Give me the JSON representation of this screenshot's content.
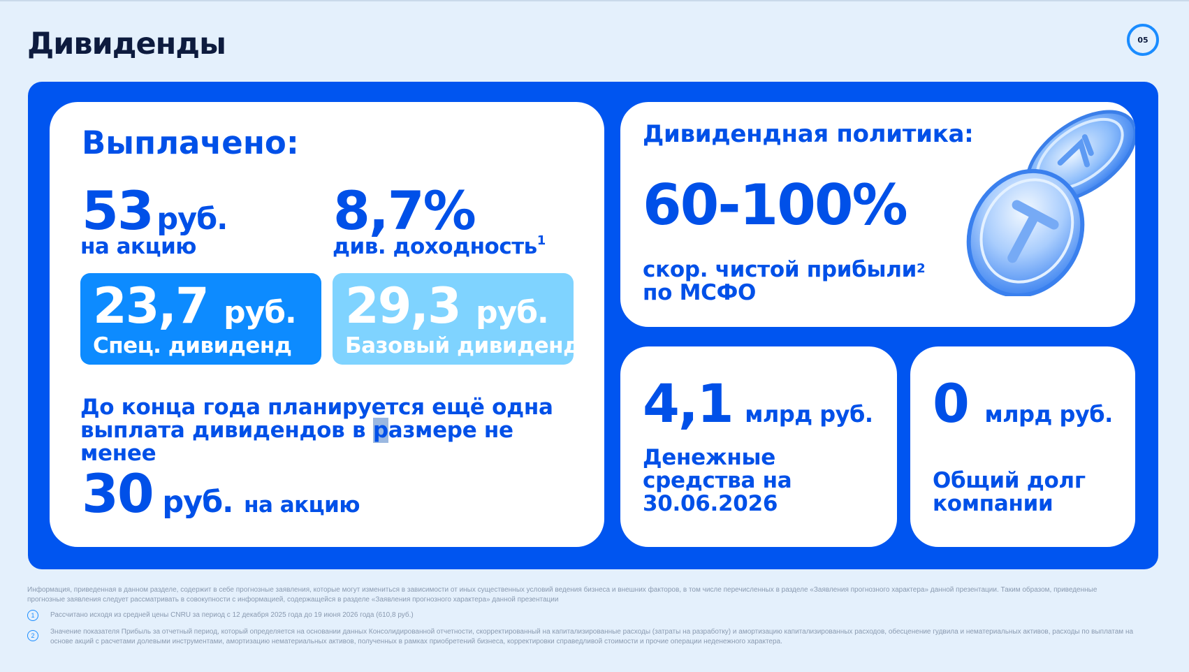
{
  "slide": {
    "title": "Дивиденды",
    "page_number": "05"
  },
  "paid": {
    "title": "Выплачено:",
    "per_share_value": "53",
    "per_share_unit": "руб.",
    "per_share_label": "на акцию",
    "yield_value": "8,7%",
    "yield_label": "див. доходность",
    "yield_footnote": "1",
    "special": {
      "value": "23,7",
      "unit": "руб.",
      "label": "Спец. дивиденд"
    },
    "base": {
      "value": "29,3",
      "unit": "руб.",
      "label": "Базовый дивиденд"
    },
    "plan_text_before": "До конца года планируется ещё одна выплата дивидендов в ",
    "plan_text_highlight": "р",
    "plan_text_after": "азмере не менее",
    "planned_value": "30",
    "planned_unit": "руб.",
    "planned_label": "на акцию"
  },
  "policy": {
    "title": "Дивидендная политика:",
    "range": "60-100%",
    "sub_line1": "скор. чистой прибыли",
    "sub_footnote": "2",
    "sub_line2": "по МСФО"
  },
  "cash": {
    "value": "4,1",
    "unit": "млрд руб.",
    "label": "Денежные средства на 30.06.2026"
  },
  "debt": {
    "value": "0",
    "unit": "млрд руб.",
    "label": "Общий долг компании"
  },
  "colors": {
    "brand_blue": "#0055f0",
    "text_blue": "#0050e8",
    "special_tile": "#0d8bff",
    "base_tile": "#7fd3ff",
    "background": "#e4f0fc"
  },
  "footer": {
    "disclaimer": "Информация, приведенная в данном разделе, содержит в себе прогнозные заявления, которые могут измениться в зависимости от иных существенных условий ведения бизнеса и внешних факторов, в том числе перечисленных в разделе «Заявления прогнозного характера» данной презентации. Таким образом, приведенные прогнозные заявления следует рассматривать в совокупности с информацией, содержащейся в разделе «Заявления прогнозного характера» данной презентации",
    "notes": [
      {
        "num": "1",
        "text": "Рассчитано исходя из средней цены CNRU за период с 12 декабря 2025 года до 19 июня 2026 года (610,8 руб.)"
      },
      {
        "num": "2",
        "text": "Значение показателя Прибыль за отчетный период, который определяется на основании данных Консолидированной отчетности, скорректированный на капитализированные расходы (затраты на разработку) и амортизацию капитализированных расходов, обесценение гудвила и нематериальных активов, расходы по выплатам на основе акций с расчетами долевыми инструментами, амортизацию нематериальных активов, полученных в рамках приобретений бизнеса, корректировки справедливой стоимости и прочие операции неденежного характера."
      }
    ]
  }
}
